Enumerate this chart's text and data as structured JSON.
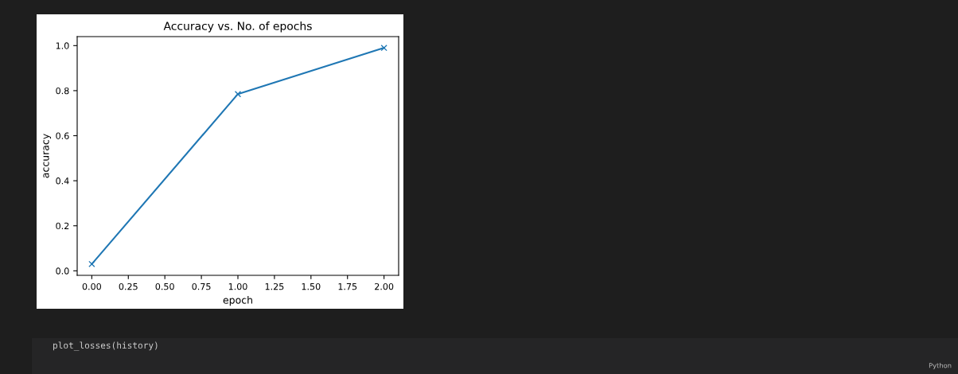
{
  "chart_data": {
    "type": "line",
    "title": "Accuracy vs. No. of epochs",
    "xlabel": "epoch",
    "ylabel": "accuracy",
    "x": [
      0,
      1,
      2
    ],
    "series": [
      {
        "color": "#1f77b4",
        "values": [
          0.03,
          0.785,
          0.99
        ]
      }
    ],
    "marker": "cross",
    "line_style": "solid",
    "grid": false,
    "legend": false,
    "xlim": [
      -0.1,
      2.1
    ],
    "xticks": [
      {
        "value": 0,
        "label": "0.00"
      },
      {
        "value": 0.25,
        "label": "0.25"
      },
      {
        "value": 0.5,
        "label": "0.50"
      },
      {
        "value": 0.75,
        "label": "0.75"
      },
      {
        "value": 1,
        "label": "1.00"
      },
      {
        "value": 1.25,
        "label": "1.25"
      },
      {
        "value": 1.5,
        "label": "1.50"
      },
      {
        "value": 1.75,
        "label": "1.75"
      },
      {
        "value": 2,
        "label": "2.00"
      }
    ],
    "ylim": [
      -0.02,
      1.04
    ],
    "yticks": [
      {
        "value": 0,
        "label": "0.0"
      },
      {
        "value": 0.2,
        "label": "0.2"
      },
      {
        "value": 0.4,
        "label": "0.4"
      },
      {
        "value": 0.6,
        "label": "0.6"
      },
      {
        "value": 0.8,
        "label": "0.8"
      },
      {
        "value": 1,
        "label": "1.0"
      }
    ],
    "annotations": [
      "plot_losses(history)",
      "Python"
    ]
  }
}
